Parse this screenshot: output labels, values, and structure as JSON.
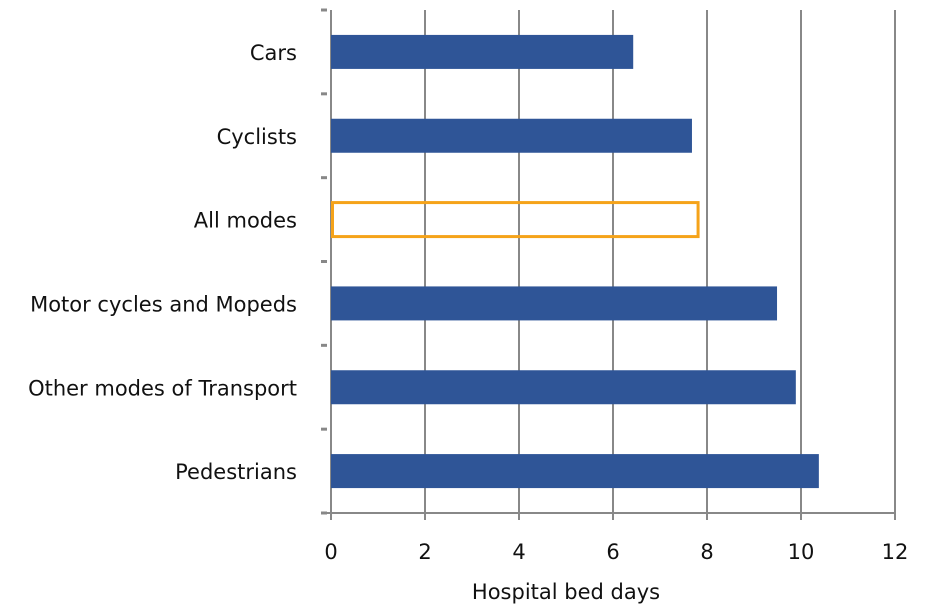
{
  "chart_data": {
    "type": "barh",
    "categories": [
      "Cars",
      "Cyclists",
      "All modes",
      "Motor cycles and Mopeds",
      "Other modes of Transport",
      "Pedestrians"
    ],
    "values": [
      6.43,
      7.68,
      7.81,
      9.49,
      9.89,
      10.38
    ],
    "colors": [
      "#2f5597",
      "#2f5597",
      "#f5a31a",
      "#2f5597",
      "#2f5597",
      "#2f5597"
    ],
    "outlined": [
      false,
      false,
      true,
      false,
      false,
      false
    ],
    "xlabel": "Hospital bed days",
    "xlim": [
      0,
      12
    ],
    "xticks": [
      0,
      2,
      4,
      6,
      8,
      10,
      12
    ],
    "grid": true
  }
}
